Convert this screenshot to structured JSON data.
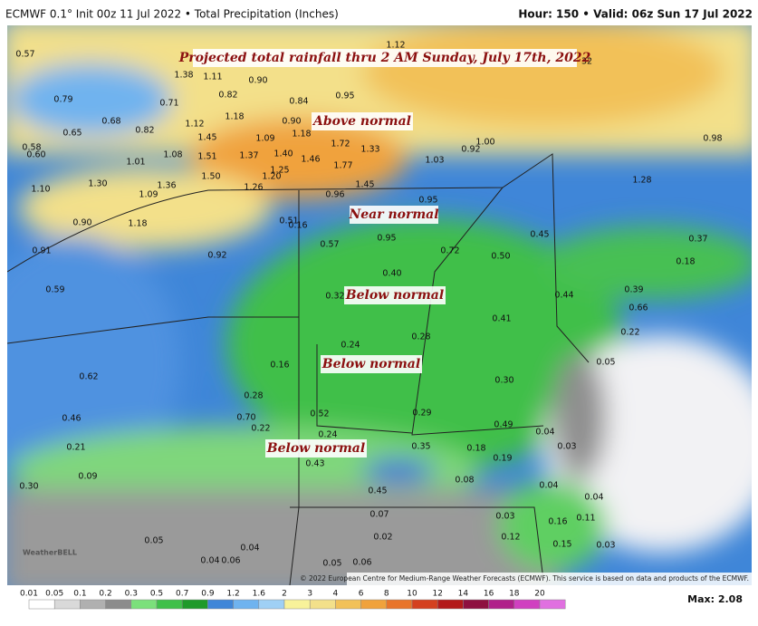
{
  "header": {
    "left": "ECMWF 0.1° Init 00z 11 Jul 2022 • Total Precipitation (Inches)",
    "right": "Hour: 150 • Valid: 06z Sun 17 Jul 2022"
  },
  "map": {
    "title": "Projected total rainfall thru 2 AM Sunday, July 17th, 2022",
    "regions": [
      "Above normal",
      "Near normal",
      "Below normal",
      "Below normal",
      "Below normal"
    ],
    "labels": [
      "1.12",
      "0.57",
      "32",
      "1.38",
      "1.11",
      "0.90",
      "0.79",
      "0.71",
      "0.82",
      "0.84",
      "0.95",
      "1.18",
      "0.68",
      "1.12",
      "0.90",
      "0.65",
      "0.82",
      "1.45",
      "1.09",
      "1.18",
      "1.72",
      "1.33",
      "1.00",
      "0.98",
      "0.58",
      "0.60",
      "1.08",
      "1.51",
      "1.37",
      "1.40",
      "1.46",
      "1.03",
      "0.92",
      "1.01",
      "1.77",
      "1.25",
      "1.30",
      "1.50",
      "1.20",
      "1.28",
      "1.10",
      "1.36",
      "1.26",
      "1.45",
      "0.96",
      "1.09",
      "0.95",
      "0.90",
      "1.18",
      "0.51",
      "0.16",
      "0.57",
      "0.95",
      "0.45",
      "0.37",
      "0.72",
      "0.50",
      "0.91",
      "0.92",
      "0.18",
      "0.40",
      "0.59",
      "0.39",
      "0.44",
      "0.32",
      "0.66",
      "0.41",
      "0.22",
      "0.28",
      "0.24",
      "0.16",
      "0.05",
      "0.62",
      "0.30",
      "0.28",
      "0.29",
      "0.52",
      "0.70",
      "0.46",
      "0.22",
      "0.24",
      "0.49",
      "0.04",
      "0.21",
      "0.35",
      "0.18",
      "0.03",
      "0.19",
      "0.43",
      "0.09",
      "0.08",
      "0.04",
      "0.30",
      "0.45",
      "0.04",
      "0.16",
      "0.11",
      "0.07",
      "0.03",
      "0.05",
      "0.02",
      "0.12",
      "0.15",
      "0.03",
      "0.04",
      "0.04",
      "0.06",
      "0.05",
      "0.06"
    ],
    "logo": "WeatherBELL",
    "credit": "© 2022 European Centre for Medium-Range Weather Forecasts (ECMWF). This service is based on data and products of the ECMWF."
  },
  "colorbar": {
    "ticks": [
      "0.01",
      "0.05",
      "0.1",
      "0.2",
      "0.3",
      "0.5",
      "0.7",
      "0.9",
      "1.2",
      "1.6",
      "2",
      "3",
      "4",
      "6",
      "8",
      "10",
      "12",
      "14",
      "16",
      "18",
      "20"
    ],
    "max": "Max: 2.08"
  }
}
